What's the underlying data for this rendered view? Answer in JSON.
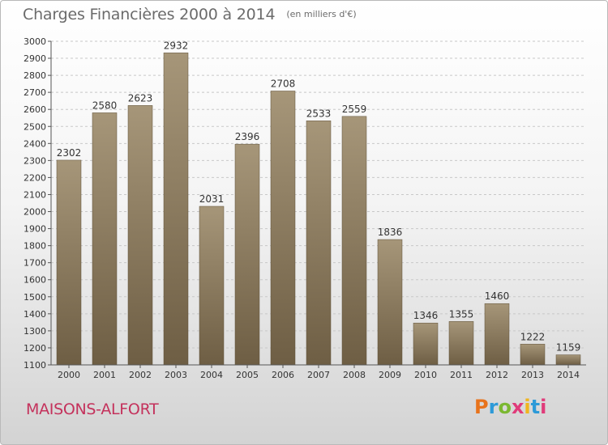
{
  "header": {
    "title": "Charges Financières 2000 à 2014",
    "subtitle": "(en milliers d'€)"
  },
  "footer": {
    "city": "MAISONS-ALFORT",
    "logo": "Proxiti",
    "logo_colors": [
      "#e8731c",
      "#2d9ad8",
      "#7bb831",
      "#e03b7a",
      "#f0b51e",
      "#2d9ad8",
      "#e03b7a"
    ]
  },
  "colors": {
    "bar_top": "#a69679",
    "bar_bottom": "#6e5e44",
    "grid": "#c8c8c8",
    "axis": "#555555",
    "title": "#6b6b6b",
    "city": "#c4325c"
  },
  "chart_data": {
    "type": "bar",
    "title": "Charges Financières 2000 à 2014",
    "subtitle": "(en milliers d'€)",
    "xlabel": "",
    "ylabel": "",
    "categories": [
      "2000",
      "2001",
      "2002",
      "2003",
      "2004",
      "2005",
      "2006",
      "2007",
      "2008",
      "2009",
      "2010",
      "2011",
      "2012",
      "2013",
      "2014"
    ],
    "values": [
      2302,
      2580,
      2623,
      2932,
      2031,
      2396,
      2708,
      2533,
      2559,
      1836,
      1346,
      1355,
      1460,
      1222,
      1159
    ],
    "data_labels": [
      "2302",
      "2580",
      "2623",
      "2932",
      "2031",
      "2396",
      "2708",
      "2533",
      "2559",
      "1836",
      "1346",
      "1355",
      "1460",
      "1222",
      "1159"
    ],
    "ylim": [
      1100,
      3000
    ],
    "yticks": [
      1100,
      1200,
      1300,
      1400,
      1500,
      1600,
      1700,
      1800,
      1900,
      2000,
      2100,
      2200,
      2300,
      2400,
      2500,
      2600,
      2700,
      2800,
      2900,
      3000
    ],
    "grid": "horizontal dashed",
    "legend": "none"
  }
}
